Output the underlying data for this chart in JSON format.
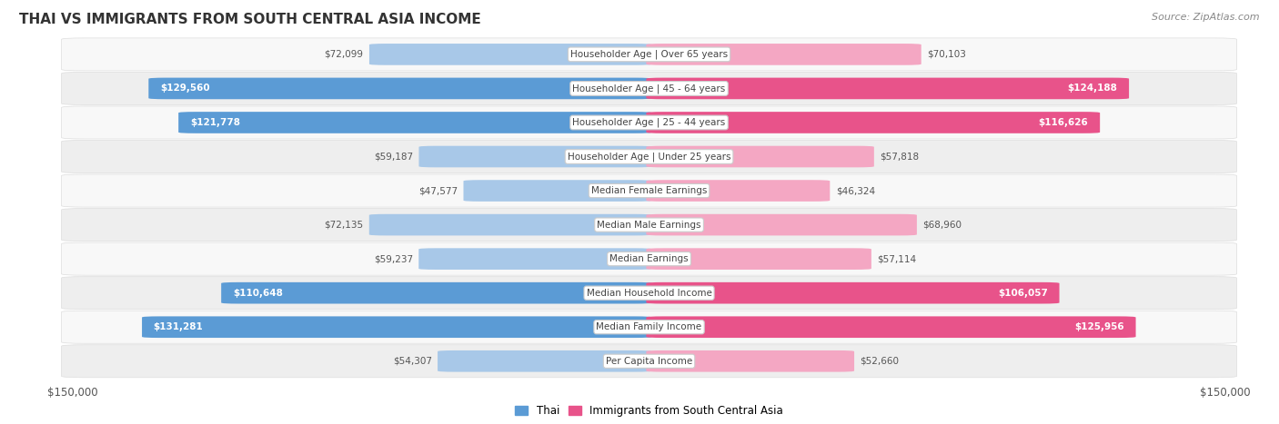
{
  "title": "THAI VS IMMIGRANTS FROM SOUTH CENTRAL ASIA INCOME",
  "source": "Source: ZipAtlas.com",
  "categories": [
    "Per Capita Income",
    "Median Family Income",
    "Median Household Income",
    "Median Earnings",
    "Median Male Earnings",
    "Median Female Earnings",
    "Householder Age | Under 25 years",
    "Householder Age | 25 - 44 years",
    "Householder Age | 45 - 64 years",
    "Householder Age | Over 65 years"
  ],
  "thai_values": [
    54307,
    131281,
    110648,
    59237,
    72135,
    47577,
    59187,
    121778,
    129560,
    72099
  ],
  "immigrant_values": [
    52660,
    125956,
    106057,
    57114,
    68960,
    46324,
    57818,
    116626,
    124188,
    70103
  ],
  "thai_labels": [
    "$54,307",
    "$131,281",
    "$110,648",
    "$59,237",
    "$72,135",
    "$47,577",
    "$59,187",
    "$121,778",
    "$129,560",
    "$72,099"
  ],
  "immigrant_labels": [
    "$52,660",
    "$125,956",
    "$106,057",
    "$57,114",
    "$68,960",
    "$46,324",
    "$57,818",
    "$116,626",
    "$124,188",
    "$70,103"
  ],
  "thai_color_large": "#5b9bd5",
  "thai_color_small": "#a8c8e8",
  "immigrant_color_large": "#e8538a",
  "immigrant_color_small": "#f4a7c3",
  "max_value": 150000,
  "x_axis_label_left": "$150,000",
  "x_axis_label_right": "$150,000",
  "legend_thai": "Thai",
  "legend_immigrant": "Immigrants from South Central Asia",
  "background_color": "#ffffff",
  "row_bg_odd": "#eeeeee",
  "row_bg_even": "#f8f8f8",
  "label_box_color": "#ffffff",
  "label_box_border": "#cccccc",
  "large_value_threshold": 85000,
  "title_fontsize": 11,
  "source_fontsize": 8,
  "bar_height": 0.62,
  "row_box_color": "#e8e8e8",
  "title_color": "#333333",
  "source_color": "#888888",
  "tick_label_color": "#555555",
  "cat_label_color": "#444444",
  "value_label_color_inside": "#ffffff",
  "value_label_color_outside": "#555555"
}
